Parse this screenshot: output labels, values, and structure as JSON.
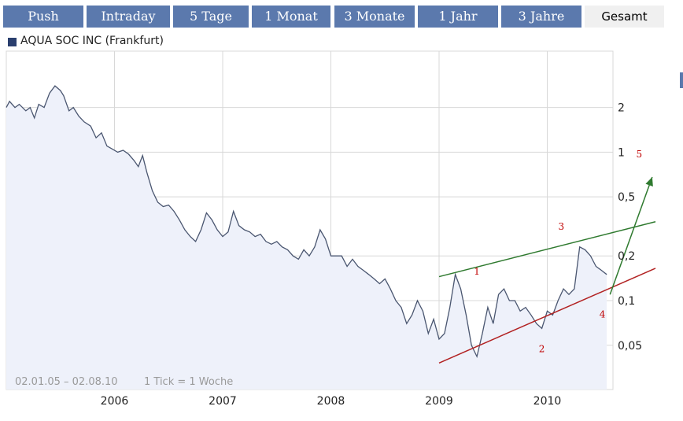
{
  "tabs": [
    "Push",
    "Intraday",
    "5 Tage",
    "1 Monat",
    "3 Monate",
    "1 Jahr",
    "3 Jahre",
    "Gesamt"
  ],
  "active_tab": "Gesamt",
  "legend": {
    "label": "AQUA SOC INC (Frankfurt)"
  },
  "info": {
    "range": "02.01.05 – 02.08.10",
    "tick": "1 Tick = 1 Woche"
  },
  "colors": {
    "tab_bg": "#5b79ad",
    "line": "#4a5670",
    "area": "#eef1fa",
    "green": "#2f7a2f",
    "red": "#b22222",
    "annotation": "#c00000"
  },
  "chart_data": {
    "type": "area",
    "yscale": "log",
    "ylim": [
      0.025,
      3.8
    ],
    "xlim": [
      2005.0,
      2010.6
    ],
    "x_tick_labels": [
      "2006",
      "2007",
      "2008",
      "2009",
      "2010"
    ],
    "x_tick_values": [
      2006,
      2007,
      2008,
      2009,
      2010
    ],
    "y_tick_labels": [
      "0,05",
      "0,1",
      "0,2",
      "0,5",
      "1",
      "2"
    ],
    "y_tick_values": [
      0.05,
      0.1,
      0.2,
      0.5,
      1,
      2
    ],
    "series": [
      {
        "x": [
          2005.0,
          2005.03,
          2005.08,
          2005.12,
          2005.18,
          2005.22,
          2005.26,
          2005.3,
          2005.35,
          2005.4,
          2005.45,
          2005.5,
          2005.53,
          2005.58,
          2005.62,
          2005.67,
          2005.72,
          2005.78,
          2005.83,
          2005.88,
          2005.93,
          2005.98,
          2006.03,
          2006.08,
          2006.13,
          2006.18,
          2006.22,
          2006.26,
          2006.3,
          2006.35,
          2006.4,
          2006.45,
          2006.5,
          2006.55,
          2006.6,
          2006.65,
          2006.7,
          2006.75,
          2006.8,
          2006.85,
          2006.9,
          2006.95,
          2007.0,
          2007.05,
          2007.1,
          2007.15,
          2007.2,
          2007.25,
          2007.3,
          2007.35,
          2007.4,
          2007.45,
          2007.5,
          2007.55,
          2007.6,
          2007.65,
          2007.7,
          2007.75,
          2007.8,
          2007.85,
          2007.9,
          2007.95,
          2008.0,
          2008.05,
          2008.1,
          2008.15,
          2008.2,
          2008.25,
          2008.3,
          2008.35,
          2008.4,
          2008.45,
          2008.5,
          2008.55,
          2008.6,
          2008.65,
          2008.7,
          2008.75,
          2008.8,
          2008.85,
          2008.9,
          2008.95,
          2009.0,
          2009.05,
          2009.1,
          2009.15,
          2009.2,
          2009.25,
          2009.3,
          2009.35,
          2009.4,
          2009.45,
          2009.5,
          2009.55,
          2009.6,
          2009.65,
          2009.7,
          2009.75,
          2009.8,
          2009.85,
          2009.9,
          2009.95,
          2010.0,
          2010.05,
          2010.1,
          2010.15,
          2010.2,
          2010.25,
          2010.3,
          2010.35,
          2010.4,
          2010.45,
          2010.5,
          2010.55
        ],
        "y": [
          2.0,
          2.2,
          2.0,
          2.1,
          1.9,
          2.0,
          1.7,
          2.1,
          2.0,
          2.5,
          2.8,
          2.6,
          2.4,
          1.9,
          2.0,
          1.75,
          1.6,
          1.5,
          1.25,
          1.35,
          1.1,
          1.05,
          1.0,
          1.03,
          0.97,
          0.88,
          0.8,
          0.95,
          0.73,
          0.55,
          0.46,
          0.43,
          0.44,
          0.4,
          0.35,
          0.3,
          0.27,
          0.25,
          0.3,
          0.39,
          0.35,
          0.3,
          0.27,
          0.29,
          0.4,
          0.32,
          0.3,
          0.29,
          0.27,
          0.28,
          0.25,
          0.24,
          0.25,
          0.23,
          0.22,
          0.2,
          0.19,
          0.22,
          0.2,
          0.23,
          0.3,
          0.26,
          0.2,
          0.2,
          0.2,
          0.17,
          0.19,
          0.17,
          0.16,
          0.15,
          0.14,
          0.13,
          0.14,
          0.12,
          0.1,
          0.09,
          0.07,
          0.08,
          0.1,
          0.085,
          0.06,
          0.075,
          0.055,
          0.06,
          0.09,
          0.15,
          0.12,
          0.08,
          0.05,
          0.042,
          0.06,
          0.09,
          0.07,
          0.11,
          0.12,
          0.1,
          0.1,
          0.085,
          0.09,
          0.08,
          0.07,
          0.065,
          0.085,
          0.08,
          0.1,
          0.12,
          0.11,
          0.12,
          0.23,
          0.22,
          0.2,
          0.17,
          0.16,
          0.15
        ]
      }
    ],
    "annotations": [
      {
        "label": "1",
        "x": 2009.35,
        "y": 0.15
      },
      {
        "label": "2",
        "x": 2009.95,
        "y": 0.045
      },
      {
        "label": "3",
        "x": 2010.13,
        "y": 0.3
      },
      {
        "label": "4",
        "x": 2010.51,
        "y": 0.077
      },
      {
        "label": "5",
        "x": 2010.85,
        "y": 0.92
      }
    ],
    "trendlines": [
      {
        "color": "green",
        "points": [
          [
            2009.0,
            0.145
          ],
          [
            2011.0,
            0.34
          ]
        ]
      },
      {
        "color": "red",
        "points": [
          [
            2009.0,
            0.038
          ],
          [
            2011.0,
            0.165
          ]
        ]
      },
      {
        "color": "green",
        "points": [
          [
            2010.58,
            0.11
          ],
          [
            2010.97,
            0.68
          ]
        ],
        "arrow": true
      }
    ]
  }
}
